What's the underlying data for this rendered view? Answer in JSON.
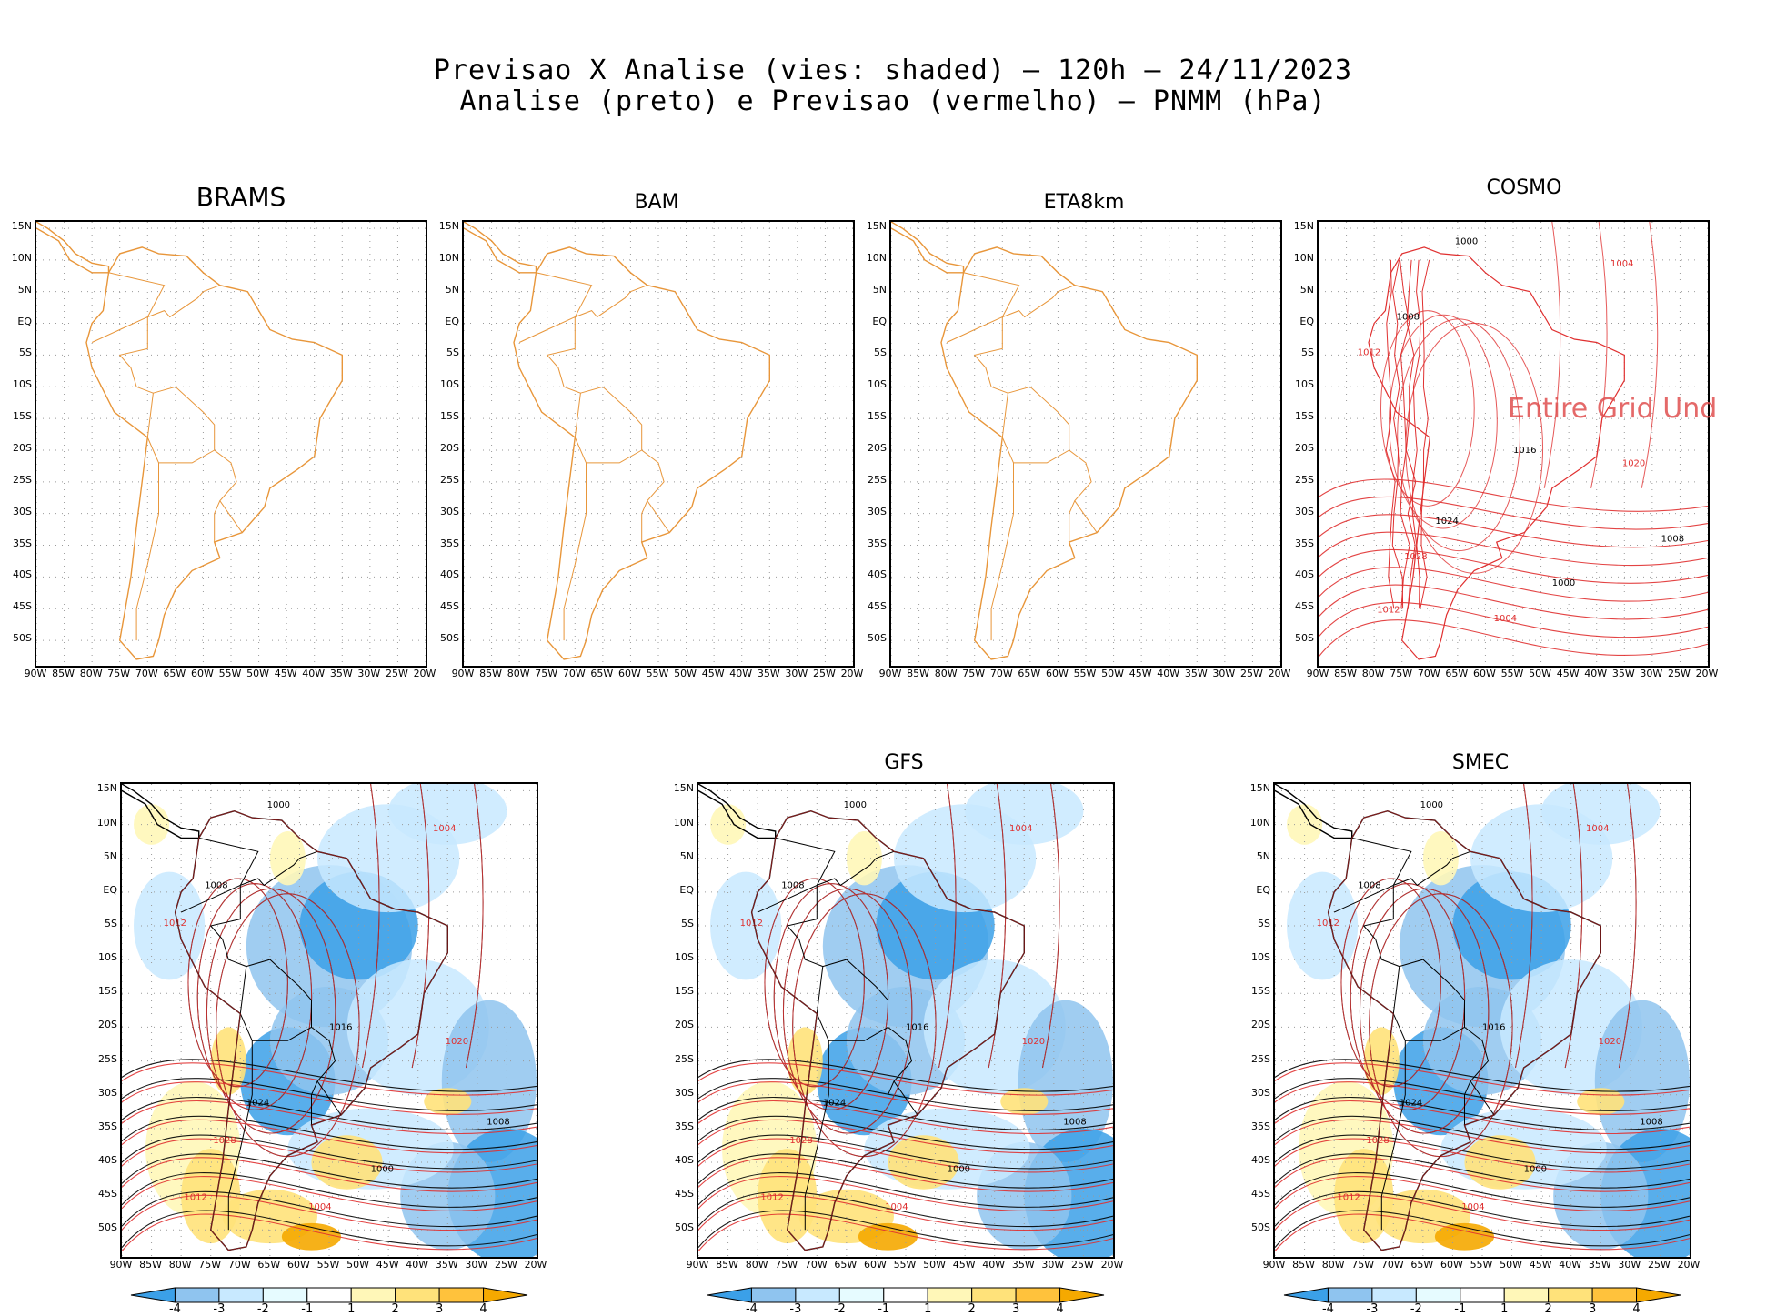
{
  "header": {
    "line1": "Previsao X Analise (vies: shaded) – 120h – 24/11/2023",
    "line2": "Analise (preto) e Previsao (vermelho) – PNMM (hPa)"
  },
  "axes": {
    "lat_labels": [
      "15N",
      "10N",
      "5N",
      "EQ",
      "5S",
      "10S",
      "15S",
      "20S",
      "25S",
      "30S",
      "35S",
      "40S",
      "45S",
      "50S"
    ],
    "lon_labels": [
      "90W",
      "85W",
      "80W",
      "75W",
      "70W",
      "65W",
      "60W",
      "55W",
      "50W",
      "45W",
      "40W",
      "35W",
      "30W",
      "25W",
      "20W"
    ]
  },
  "panels": [
    {
      "name": "BRAMS",
      "kind": "empty"
    },
    {
      "name": "BAM",
      "kind": "empty"
    },
    {
      "name": "ETA8km",
      "kind": "empty"
    },
    {
      "name": "COSMO",
      "kind": "contour",
      "overlay_text": "Entire Grid Und"
    },
    {
      "name": "",
      "kind": "bias"
    },
    {
      "name": "GFS",
      "kind": "bias"
    },
    {
      "name": "SMEC",
      "kind": "bias"
    }
  ],
  "contour_labels": [
    "1000",
    "1004",
    "1008",
    "1012",
    "1016",
    "1020",
    "1024",
    "1028"
  ],
  "colorbar": {
    "ticks": [
      "-4",
      "-3",
      "-2",
      "-1",
      "1",
      "2",
      "3",
      "4"
    ],
    "colors": [
      "#3ba0e8",
      "#8fc4ef",
      "#c8e9ff",
      "#e6fbff",
      "#ffffff",
      "#fff7b8",
      "#ffe27a",
      "#ffc23c",
      "#f5a900"
    ]
  },
  "colors": {
    "coast": "#e8963a",
    "analysis": "#000000",
    "forecast": "#e03030",
    "grid": "#9a9a9a"
  }
}
